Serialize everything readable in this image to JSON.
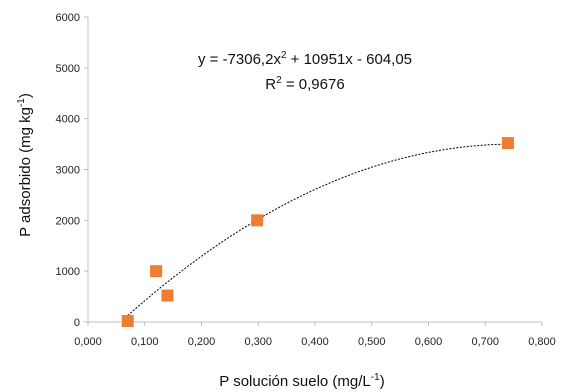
{
  "chart_data": {
    "type": "scatter",
    "xlabel_main": "P solución suelo (mg/L",
    "xlabel_sup": "-1",
    "xlabel_end": ")",
    "ylabel_main": "P adsorbido  (mg kg",
    "ylabel_sup": "-1",
    "ylabel_end": ")",
    "xlim": [
      0,
      0.8
    ],
    "ylim": [
      0,
      6000
    ],
    "x_ticks": [
      0,
      0.1,
      0.2,
      0.3,
      0.4,
      0.5,
      0.6,
      0.7,
      0.8
    ],
    "x_tick_labels": [
      "0,000",
      "0,100",
      "0,200",
      "0,300",
      "0,400",
      "0,500",
      "0,600",
      "0,700",
      "0,800"
    ],
    "y_ticks": [
      0,
      1000,
      2000,
      3000,
      4000,
      5000,
      6000
    ],
    "y_tick_labels": [
      "0",
      "1000",
      "2000",
      "3000",
      "4000",
      "5000",
      "6000"
    ],
    "points": [
      {
        "x": 0.07,
        "y": 20
      },
      {
        "x": 0.12,
        "y": 1000
      },
      {
        "x": 0.14,
        "y": 520
      },
      {
        "x": 0.298,
        "y": 2000
      },
      {
        "x": 0.74,
        "y": 3520
      }
    ],
    "trendline": {
      "type": "polynomial",
      "coefficients": [
        -7306.2,
        10951,
        -604.05
      ],
      "x_range": [
        0.07,
        0.74
      ]
    },
    "equation_main": "y = -7306,2x",
    "equation_sup": "2",
    "equation_end": " + 10951x - 604,05",
    "r2_main": "R",
    "r2_sup": "2",
    "r2_end": " = 0,9676",
    "grid": false,
    "legend": "none",
    "marker_color": "#ED7D31",
    "trendline_color": "#000000",
    "axis_color": "#BFBFBF"
  }
}
